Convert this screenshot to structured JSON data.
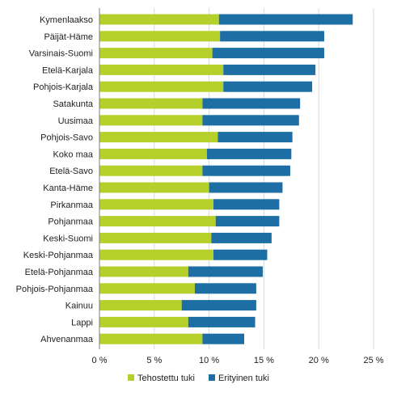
{
  "chart_data": {
    "type": "bar",
    "orientation": "horizontal",
    "stacked": true,
    "categories": [
      "Kymenlaakso",
      "Päijät-Häme",
      "Varsinais-Suomi",
      "Etelä-Karjala",
      "Pohjois-Karjala",
      "Satakunta",
      "Uusimaa",
      "Pohjois-Savo",
      "Koko maa",
      "Etelä-Savo",
      "Kanta-Häme",
      "Pirkanmaa",
      "Pohjanmaa",
      "Keski-Suomi",
      "Keski-Pohjanmaa",
      "Etelä-Pohjanmaa",
      "Pohjois-Pohjanmaa",
      "Kainuu",
      "Lappi",
      "Ahvenanmaa"
    ],
    "series": [
      {
        "name": "Tehostettu tuki",
        "color": "#b5cf2b",
        "values": [
          10.9,
          11.0,
          10.3,
          11.3,
          11.3,
          9.4,
          9.4,
          10.8,
          9.8,
          9.4,
          10.0,
          10.4,
          10.6,
          10.2,
          10.4,
          8.1,
          8.7,
          7.5,
          8.1,
          9.4
        ]
      },
      {
        "name": "Erityinen tuki",
        "color": "#1c6ea4",
        "values": [
          12.2,
          9.5,
          10.2,
          8.4,
          8.1,
          8.9,
          8.8,
          6.8,
          7.7,
          8.0,
          6.7,
          6.0,
          5.8,
          5.5,
          4.9,
          6.8,
          5.6,
          6.8,
          6.1,
          3.8
        ]
      }
    ],
    "xlim": [
      0,
      25
    ],
    "xticks": [
      0,
      5,
      10,
      15,
      20,
      25
    ],
    "tick_labels": [
      "0 %",
      "5 %",
      "10 %",
      "15 %",
      "20 %",
      "25 %"
    ],
    "grid": true,
    "legend_position": "bottom"
  }
}
